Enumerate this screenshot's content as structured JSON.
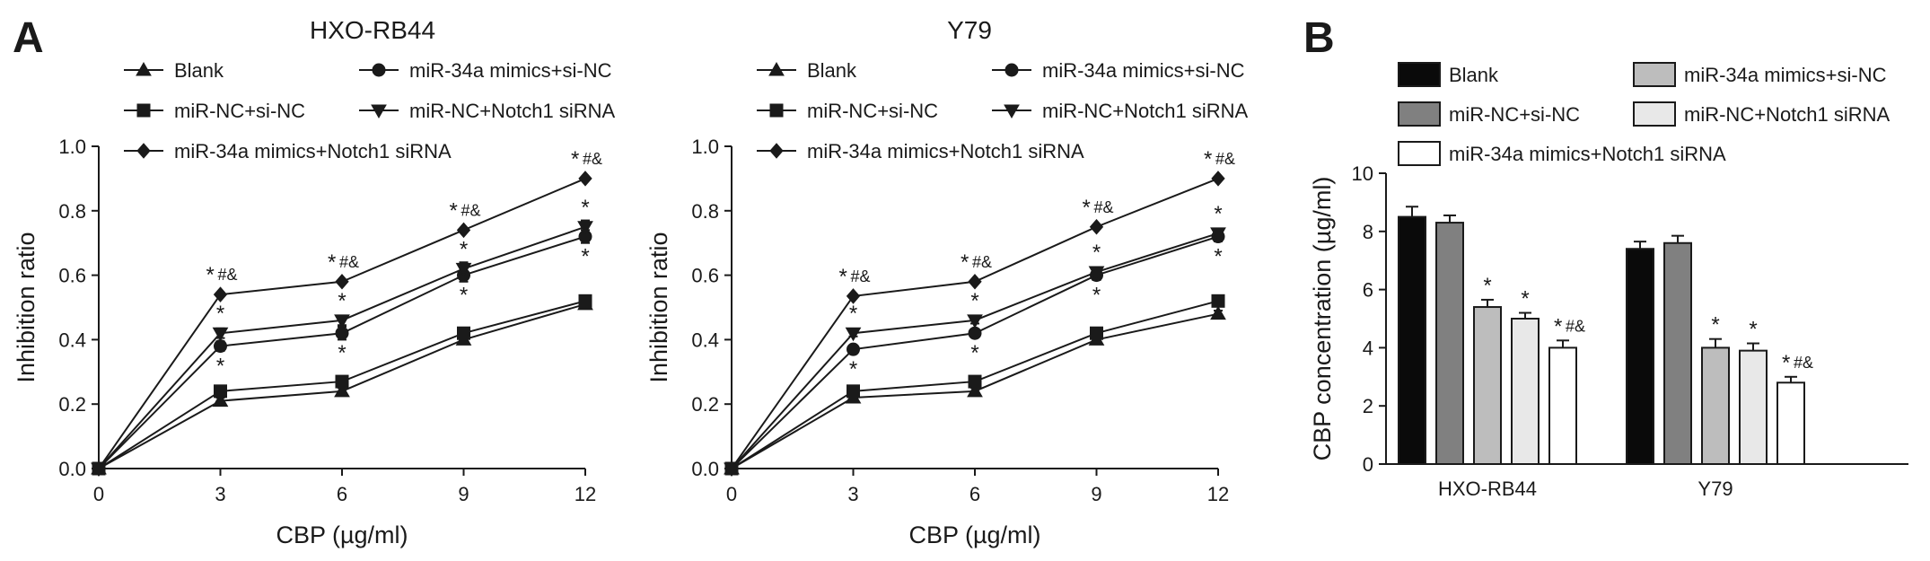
{
  "panel_labels": {
    "a": "A",
    "b": "B"
  },
  "chart_data": [
    {
      "type": "line",
      "title": "HXO-RB44",
      "xlabel": "CBP (µg/ml)",
      "ylabel": "Inhibition ratio",
      "x": [
        0,
        3,
        6,
        9,
        12
      ],
      "xticks": [
        "0",
        "3",
        "6",
        "9",
        "12"
      ],
      "xlim": [
        0,
        12
      ],
      "ylim": [
        0.0,
        1.0
      ],
      "yticks": [
        "0.0",
        "0.2",
        "0.4",
        "0.6",
        "0.8",
        "1.0"
      ],
      "grid": false,
      "legend_position": "top",
      "series": [
        {
          "name": "Blank",
          "marker": "triangle-up",
          "values": [
            0,
            0.21,
            0.24,
            0.4,
            0.51
          ],
          "errors": [
            0,
            0.01,
            0.01,
            0.01,
            0.01
          ]
        },
        {
          "name": "miR-34a mimics+si-NC",
          "marker": "circle",
          "values": [
            0,
            0.38,
            0.42,
            0.6,
            0.72
          ],
          "errors": [
            0,
            0.015,
            0.02,
            0.02,
            0.02
          ]
        },
        {
          "name": "miR-NC+si-NC",
          "marker": "square",
          "values": [
            0,
            0.24,
            0.27,
            0.42,
            0.52
          ],
          "errors": [
            0,
            0.01,
            0.01,
            0.01,
            0.01
          ]
        },
        {
          "name": "miR-NC+Notch1 siRNA",
          "marker": "triangle-down",
          "values": [
            0,
            0.42,
            0.46,
            0.62,
            0.75
          ],
          "errors": [
            0,
            0.015,
            0.015,
            0.02,
            0.02
          ]
        },
        {
          "name": "miR-34a mimics+Notch1 siRNA",
          "marker": "diamond",
          "values": [
            0,
            0.54,
            0.58,
            0.74,
            0.9
          ],
          "errors": [
            0,
            0,
            0,
            0,
            0
          ]
        }
      ],
      "annotations": [
        {
          "x": 3,
          "y": 0.54,
          "star": "*",
          "hash": "#&"
        },
        {
          "x": 6,
          "y": 0.58,
          "star": "*",
          "hash": "#&"
        },
        {
          "x": 9,
          "y": 0.74,
          "star": "*",
          "hash": "#&"
        },
        {
          "x": 12,
          "y": 0.9,
          "star": "*",
          "hash": "#&"
        },
        {
          "x": 3,
          "y": 0.42,
          "star": "*",
          "hash": ""
        },
        {
          "x": 6,
          "y": 0.46,
          "star": "*",
          "hash": ""
        },
        {
          "x": 9,
          "y": 0.62,
          "star": "*",
          "hash": ""
        },
        {
          "x": 12,
          "y": 0.75,
          "star": "*",
          "hash": ""
        },
        {
          "x": 3,
          "y": 0.38,
          "star": "*",
          "hash": "",
          "below": true
        },
        {
          "x": 6,
          "y": 0.42,
          "star": "*",
          "hash": "",
          "below": true
        },
        {
          "x": 9,
          "y": 0.6,
          "star": "*",
          "hash": "",
          "below": true
        },
        {
          "x": 12,
          "y": 0.72,
          "star": "*",
          "hash": "",
          "below": true
        }
      ]
    },
    {
      "type": "line",
      "title": "Y79",
      "xlabel": "CBP (µg/ml)",
      "ylabel": "Inhibition ratio",
      "x": [
        0,
        3,
        6,
        9,
        12
      ],
      "xticks": [
        "0",
        "3",
        "6",
        "9",
        "12"
      ],
      "xlim": [
        0,
        12
      ],
      "ylim": [
        0.0,
        1.0
      ],
      "yticks": [
        "0.0",
        "0.2",
        "0.4",
        "0.6",
        "0.8",
        "1.0"
      ],
      "grid": false,
      "legend_position": "top",
      "series": [
        {
          "name": "Blank",
          "marker": "triangle-up",
          "values": [
            0,
            0.22,
            0.24,
            0.4,
            0.48
          ],
          "errors": [
            0,
            0.01,
            0.01,
            0.01,
            0.01
          ]
        },
        {
          "name": "miR-34a mimics+si-NC",
          "marker": "circle",
          "values": [
            0,
            0.37,
            0.42,
            0.6,
            0.72
          ],
          "errors": [
            0,
            0.01,
            0.01,
            0.015,
            0.015
          ]
        },
        {
          "name": "miR-NC+si-NC",
          "marker": "square",
          "values": [
            0,
            0.24,
            0.27,
            0.42,
            0.52
          ],
          "errors": [
            0,
            0.01,
            0.01,
            0.01,
            0.01
          ]
        },
        {
          "name": "miR-NC+Notch1 siRNA",
          "marker": "triangle-down",
          "values": [
            0,
            0.42,
            0.46,
            0.61,
            0.73
          ],
          "errors": [
            0,
            0.01,
            0.01,
            0.015,
            0.015
          ]
        },
        {
          "name": "miR-34a mimics+Notch1 siRNA",
          "marker": "diamond",
          "values": [
            0,
            0.535,
            0.58,
            0.75,
            0.9
          ],
          "errors": [
            0,
            0,
            0,
            0,
            0
          ]
        }
      ],
      "annotations": [
        {
          "x": 3,
          "y": 0.535,
          "star": "*",
          "hash": "#&"
        },
        {
          "x": 6,
          "y": 0.58,
          "star": "*",
          "hash": "#&"
        },
        {
          "x": 9,
          "y": 0.75,
          "star": "*",
          "hash": "#&"
        },
        {
          "x": 12,
          "y": 0.9,
          "star": "*",
          "hash": "#&"
        },
        {
          "x": 3,
          "y": 0.42,
          "star": "*",
          "hash": ""
        },
        {
          "x": 6,
          "y": 0.46,
          "star": "*",
          "hash": ""
        },
        {
          "x": 9,
          "y": 0.61,
          "star": "*",
          "hash": ""
        },
        {
          "x": 12,
          "y": 0.73,
          "star": "*",
          "hash": ""
        },
        {
          "x": 3,
          "y": 0.37,
          "star": "*",
          "hash": "",
          "below": true
        },
        {
          "x": 6,
          "y": 0.42,
          "star": "*",
          "hash": "",
          "below": true
        },
        {
          "x": 9,
          "y": 0.6,
          "star": "*",
          "hash": "",
          "below": true
        },
        {
          "x": 12,
          "y": 0.72,
          "star": "*",
          "hash": "",
          "below": true
        }
      ]
    },
    {
      "type": "bar",
      "title": "",
      "xlabel": "",
      "ylabel": "CBP concentration (µg/ml)",
      "categories": [
        "HXO-RB44",
        "Y79"
      ],
      "ylim": [
        0,
        10
      ],
      "yticks": [
        "0",
        "2",
        "4",
        "6",
        "8",
        "10"
      ],
      "grid": false,
      "legend_position": "top",
      "series": [
        {
          "name": "Blank",
          "color": "#0a0a0a",
          "values": [
            8.5,
            7.4
          ],
          "errors": [
            0.35,
            0.25
          ],
          "sig": [
            "",
            ""
          ]
        },
        {
          "name": "miR-NC+si-NC",
          "color": "#808080",
          "values": [
            8.3,
            7.6
          ],
          "errors": [
            0.25,
            0.25
          ],
          "sig": [
            "",
            ""
          ]
        },
        {
          "name": "miR-34a mimics+si-NC",
          "color": "#bdbdbd",
          "values": [
            5.4,
            4.0
          ],
          "errors": [
            0.25,
            0.3
          ],
          "sig": [
            "*",
            "*"
          ]
        },
        {
          "name": "miR-NC+Notch1 siRNA",
          "color": "#e8e8e8",
          "values": [
            5.0,
            3.9
          ],
          "errors": [
            0.2,
            0.25
          ],
          "sig": [
            "*",
            "*"
          ]
        },
        {
          "name": "miR-34a mimics+Notch1 siRNA",
          "color": "#ffffff",
          "values": [
            4.0,
            2.8
          ],
          "errors": [
            0.25,
            0.2
          ],
          "sig": [
            "*#&",
            "*#&"
          ]
        }
      ]
    }
  ]
}
